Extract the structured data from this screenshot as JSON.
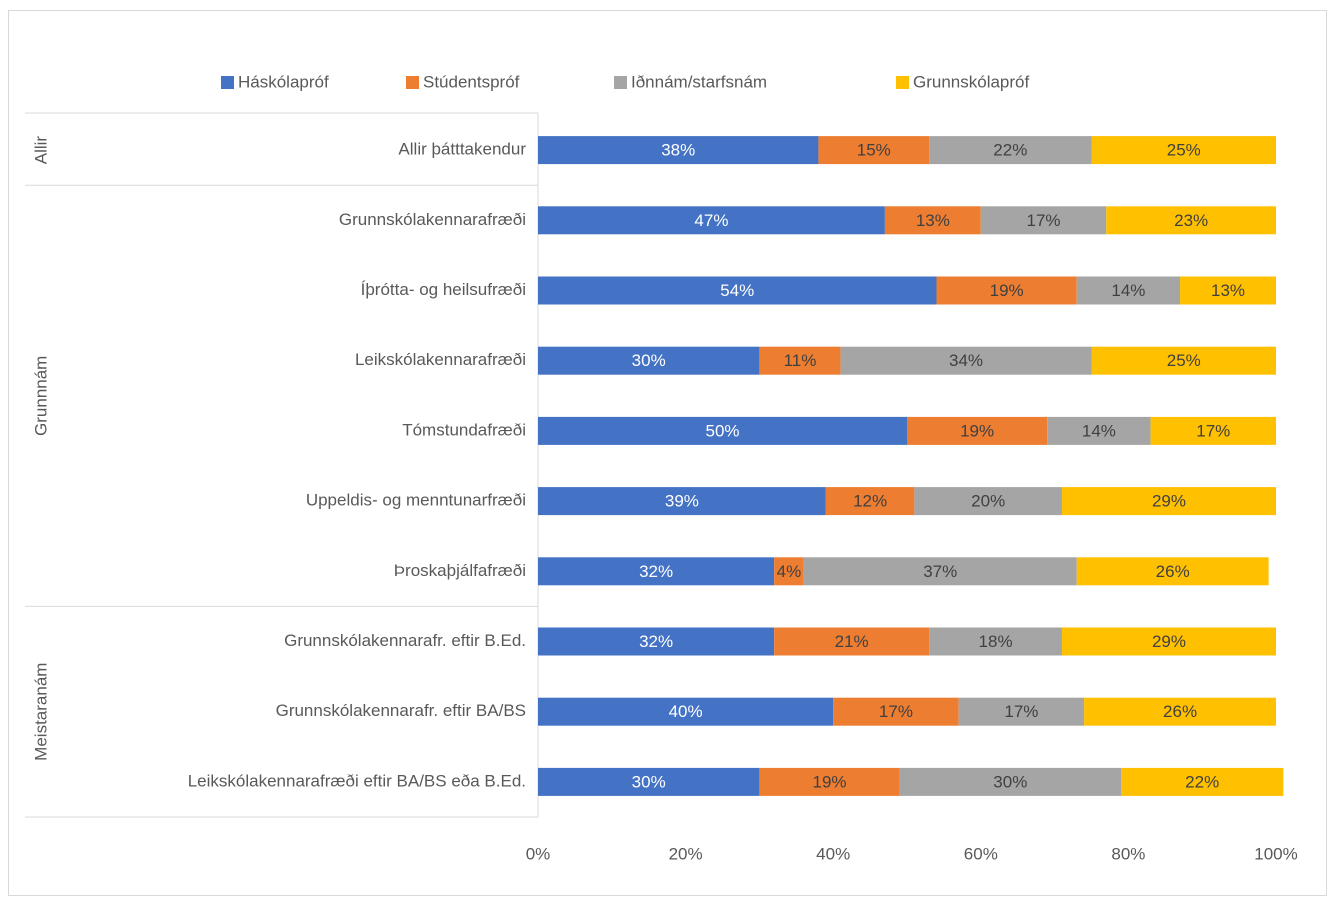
{
  "chart_data": {
    "type": "stacked_bar_horizontal",
    "groups": [
      {
        "name": "Allir",
        "categories": [
          "Allir þátttakendur"
        ]
      },
      {
        "name": "Grunnnám",
        "categories": [
          "Grunnskólakennarafræði",
          "Íþrótta- og heilsufræði",
          "Leikskólakennarafræði",
          "Tómstundafræði",
          "Uppeldis- og menntunarfræði",
          "Þroskaþjálfafræði"
        ]
      },
      {
        "name": "Meistaranám",
        "categories": [
          "Grunnskólakennarafr. eftir B.Ed.",
          "Grunnskólakennarafr. eftir BA/BS",
          "Leikskólakennarafræði eftir BA/BS eða B.Ed."
        ]
      }
    ],
    "series": [
      {
        "name": "Háskólapróf",
        "color": "#4472c4",
        "label_color": "#ffffff",
        "values": [
          38,
          47,
          54,
          30,
          50,
          39,
          32,
          32,
          40,
          30
        ],
        "value_labels": [
          "38%",
          "47%",
          "54%",
          "30%",
          "50%",
          "39%",
          "32%",
          "32%",
          "40%",
          "30%"
        ]
      },
      {
        "name": "Stúdentspróf",
        "color": "#ed7d31",
        "label_color": "#404040",
        "values": [
          15,
          13,
          19,
          11,
          19,
          12,
          4,
          21,
          17,
          19
        ],
        "value_labels": [
          "15%",
          "13%",
          "19%",
          "11%",
          "19%",
          "12%",
          "4%",
          "21%",
          "17%",
          "19%"
        ]
      },
      {
        "name": "Iðnnám/starfsnám",
        "color": "#a5a5a5",
        "label_color": "#404040",
        "values": [
          22,
          17,
          14,
          34,
          14,
          20,
          37,
          18,
          17,
          30
        ],
        "value_labels": [
          "22%",
          "17%",
          "14%",
          "34%",
          "14%",
          "20%",
          "37%",
          "18%",
          "17%",
          "30%"
        ]
      },
      {
        "name": "Grunnskólapróf",
        "color": "#ffc000",
        "label_color": "#404040",
        "values": [
          25,
          23,
          13,
          25,
          17,
          29,
          26,
          29,
          26,
          22
        ],
        "value_labels": [
          "25%",
          "23%",
          "13%",
          "25%",
          "17%",
          "29%",
          "26%",
          "29%",
          "26%",
          "22%"
        ]
      }
    ],
    "xlim": [
      0,
      100
    ],
    "xticks": [
      {
        "value": 0,
        "label": "0%"
      },
      {
        "value": 20,
        "label": "20%"
      },
      {
        "value": 40,
        "label": "40%"
      },
      {
        "value": 60,
        "label": "60%"
      },
      {
        "value": 80,
        "label": "80%"
      },
      {
        "value": 100,
        "label": "100%"
      }
    ]
  }
}
